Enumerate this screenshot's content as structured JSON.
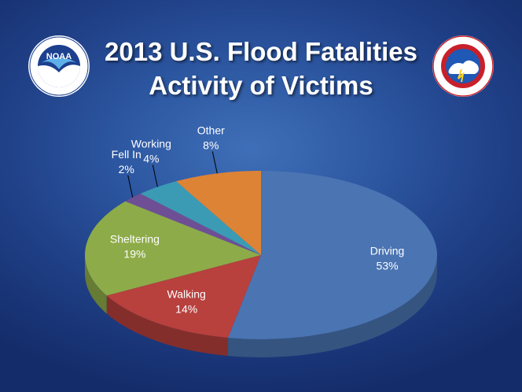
{
  "title": {
    "line1": "2013 U.S. Flood Fatalities",
    "line2": "Activity of Victims"
  },
  "logos": {
    "noaa": {
      "text": "NOAA",
      "ring_text": "NATIONAL OCEANIC AND ATMOSPHERIC ADMINISTRATION · U.S. DEPARTMENT OF COMMERCE"
    },
    "nws": {
      "ring_text": "NATIONAL WEATHER SERVICE"
    }
  },
  "chart_data": {
    "type": "pie",
    "title": "2013 U.S. Flood Fatalities Activity of Victims",
    "categories": [
      "Driving",
      "Walking",
      "Sheltering",
      "Fell In",
      "Working",
      "Other"
    ],
    "values": [
      53,
      14,
      19,
      2,
      4,
      8
    ],
    "value_labels": [
      "53%",
      "14%",
      "19%",
      "2%",
      "4%",
      "8%"
    ],
    "colors": [
      "#4a74b2",
      "#b8403d",
      "#8dab48",
      "#6e4f95",
      "#3b9bb4",
      "#dd8336"
    ],
    "style": "3d",
    "legend": "none",
    "data_labels": "outside-or-inside with leader lines"
  }
}
